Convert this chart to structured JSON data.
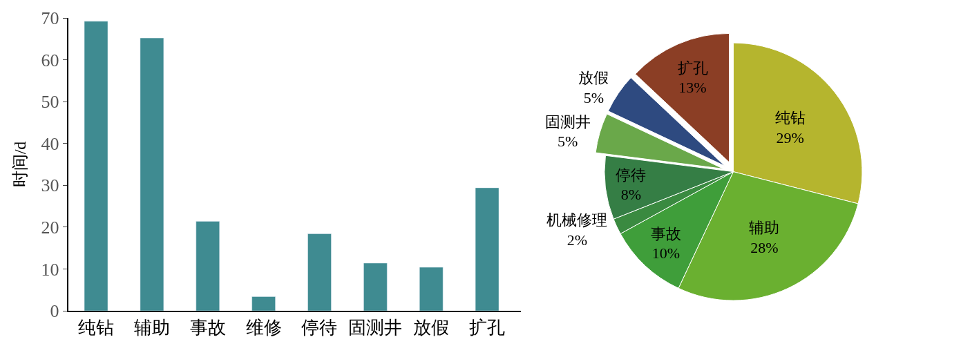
{
  "chart_data": [
    {
      "type": "bar",
      "ylabel": "时间/d",
      "categories": [
        "纯钻",
        "辅助",
        "事故",
        "维修",
        "停待",
        "固测井",
        "放假",
        "扩孔"
      ],
      "values": [
        69.2,
        65.2,
        21.4,
        3.4,
        18.4,
        11.4,
        10.4,
        29.4
      ],
      "color": "#3f8b91",
      "ylim": [
        0,
        70
      ],
      "yticks": [
        0,
        10,
        20,
        30,
        40,
        50,
        60,
        70
      ]
    },
    {
      "type": "pie",
      "categories": [
        "纯钻",
        "辅助",
        "事故",
        "机械修理",
        "停待",
        "固测井",
        "放假",
        "扩孔"
      ],
      "values": [
        29,
        28,
        10,
        2,
        8,
        5,
        5,
        13
      ],
      "value_labels": [
        "29%",
        "28%",
        "10%",
        "2%",
        "8%",
        "5%",
        "5%",
        "13%"
      ],
      "colors": [
        "#b5b52e",
        "#6ab030",
        "#3f9e3a",
        "#3a8a40",
        "#357e45",
        "#6aa84a",
        "#2e4a80",
        "#8b3e25"
      ]
    }
  ]
}
